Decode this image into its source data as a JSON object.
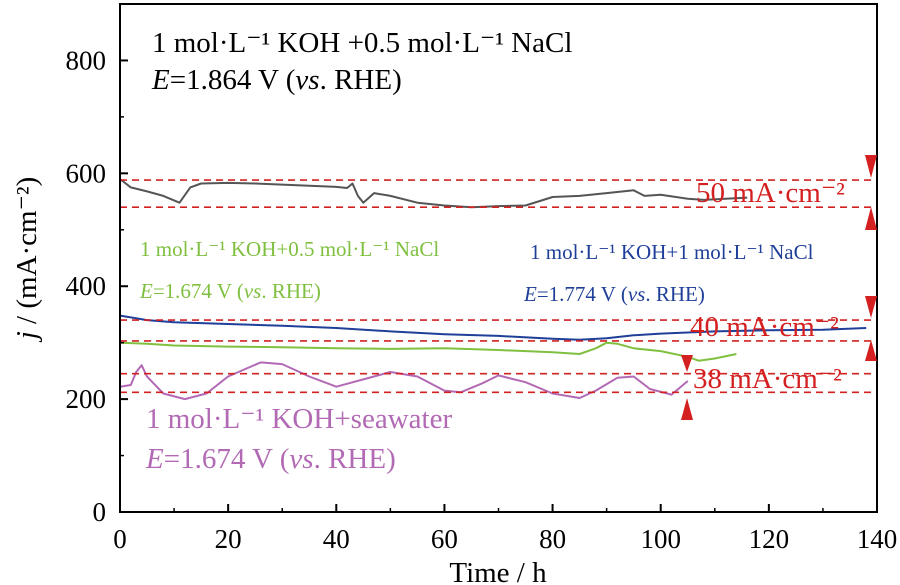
{
  "chart_data": {
    "type": "line",
    "xlabel": "Time / h",
    "ylabel": "j / (mA·cm⁻²)",
    "xlim": [
      0,
      140
    ],
    "ylim": [
      0,
      900
    ],
    "xticks": [
      0,
      20,
      40,
      60,
      80,
      100,
      120,
      140
    ],
    "yticks": [
      0,
      200,
      400,
      600,
      800
    ],
    "grid": false,
    "series": [
      {
        "name": "1 mol·L⁻¹ KOH +0.5 mol·L⁻¹ NaCl, E=1.864 V (vs. RHE)",
        "color": "#555555",
        "x": [
          0,
          2,
          5,
          8,
          11,
          13,
          15,
          20,
          25,
          30,
          35,
          40,
          42,
          43,
          44,
          45,
          47,
          50,
          55,
          60,
          65,
          70,
          75,
          80,
          85,
          90,
          95,
          97,
          100,
          105,
          108,
          112,
          116
        ],
        "y": [
          590,
          575,
          568,
          560,
          548,
          575,
          582,
          583,
          582,
          580,
          578,
          576,
          574,
          582,
          560,
          548,
          565,
          560,
          548,
          543,
          540,
          542,
          543,
          558,
          560,
          565,
          570,
          560,
          562,
          555,
          553,
          555,
          557
        ]
      },
      {
        "name": "1 mol·L⁻¹ KOH+1 mol·L⁻¹ NaCl, E=1.774 V (vs. RHE)",
        "color": "#1f3f99",
        "x": [
          0,
          5,
          10,
          20,
          30,
          40,
          50,
          60,
          70,
          80,
          85,
          90,
          95,
          100,
          110,
          120,
          130,
          138
        ],
        "y": [
          348,
          340,
          336,
          333,
          330,
          326,
          320,
          315,
          312,
          307,
          305,
          308,
          313,
          316,
          320,
          322,
          323,
          326
        ]
      },
      {
        "name": "1 mol·L⁻¹ KOH+0.5 mol·L⁻¹ NaCl, E=1.674 V (vs. RHE)",
        "color": "#80c040",
        "x": [
          0,
          5,
          10,
          20,
          30,
          40,
          50,
          60,
          70,
          80,
          85,
          88,
          90,
          92,
          95,
          100,
          105,
          107,
          110,
          114
        ],
        "y": [
          300,
          298,
          295,
          293,
          292,
          290,
          289,
          290,
          287,
          283,
          280,
          290,
          300,
          298,
          290,
          285,
          275,
          268,
          272,
          280
        ]
      },
      {
        "name": "1 mol·L⁻¹ KOH+seawater, E=1.674 V (vs. RHE)",
        "color": "#b26ab5",
        "x": [
          0,
          2,
          3,
          4,
          5,
          8,
          12,
          16,
          20,
          26,
          30,
          35,
          40,
          45,
          50,
          55,
          60,
          63,
          67,
          70,
          75,
          80,
          85,
          88,
          92,
          95,
          98,
          102,
          105
        ],
        "y": [
          222,
          225,
          248,
          260,
          240,
          210,
          200,
          210,
          240,
          265,
          262,
          240,
          222,
          235,
          248,
          240,
          215,
          212,
          228,
          242,
          230,
          210,
          202,
          215,
          238,
          240,
          218,
          208,
          232
        ]
      }
    ],
    "reference_lines": [
      {
        "y": 588,
        "color": "#d42020"
      },
      {
        "y": 540,
        "color": "#d42020"
      },
      {
        "y": 340,
        "color": "#d42020"
      },
      {
        "y": 303,
        "color": "#d42020"
      },
      {
        "y": 245,
        "color": "#d42020"
      },
      {
        "y": 212,
        "color": "#d42020"
      }
    ],
    "annotations": {
      "top_title_line1": "1 mol·L⁻¹ KOH +0.5 mol·L⁻¹ NaCl",
      "top_title_line2_pre": "E",
      "top_title_line2_mid": "=1.864 V (",
      "top_title_line2_vs": "vs",
      "top_title_line2_post": ". RHE)",
      "green_line1": "1 mol·L⁻¹ KOH+0.5 mol·L⁻¹ NaCl",
      "green_line2_pre": "E",
      "green_line2_mid": "=1.674 V (",
      "green_line2_vs": "vs",
      "green_line2_post": ". RHE)",
      "blue_line1": "1 mol·L⁻¹ KOH+1 mol·L⁻¹ NaCl",
      "blue_line2_pre": "E",
      "blue_line2_mid": "=1.774 V (",
      "blue_line2_vs": "vs",
      "blue_line2_post": ". RHE)",
      "purple_line1": "1 mol·L⁻¹ KOH+seawater",
      "purple_line2_pre": "E",
      "purple_line2_mid": "=1.674 V (",
      "purple_line2_vs": "vs",
      "purple_line2_post": ". RHE)",
      "delta_50": "50 mA·cm⁻²",
      "delta_40": "40 mA·cm⁻²",
      "delta_38": "38 mA·cm⁻²"
    },
    "colors": {
      "accent_red": "#d42020",
      "gray": "#555555",
      "blue": "#1f3f99",
      "green": "#80c040",
      "purple": "#b26ab5"
    }
  }
}
